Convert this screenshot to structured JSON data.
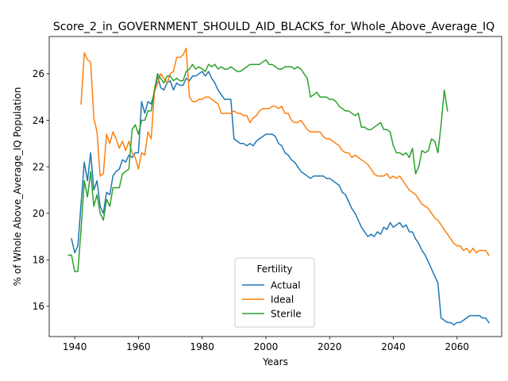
{
  "chart_data": {
    "type": "line",
    "title": "Score_2_in_GOVERNMENT_SHOULD_AID_BLACKS_for_Whole_Above_Average_IQ",
    "xlabel": "Years",
    "ylabel": "% of Whole Above_Average_IQ Population",
    "xlim": [
      1932,
      2074
    ],
    "ylim": [
      14.7,
      27.6
    ],
    "xticks": [
      1940,
      1960,
      1980,
      2000,
      2020,
      2040,
      2060
    ],
    "yticks": [
      16,
      18,
      20,
      22,
      24,
      26
    ],
    "grid": false,
    "legend": {
      "title": "Fertility",
      "placement": "lower center"
    },
    "series": [
      {
        "name": "Actual",
        "color": "#1f77b4",
        "x": [
          1939,
          1940,
          1941,
          1942,
          1943,
          1944,
          1945,
          1946,
          1947,
          1948,
          1949,
          1950,
          1951,
          1952,
          1953,
          1954,
          1955,
          1956,
          1957,
          1958,
          1959,
          1960,
          1961,
          1962,
          1963,
          1964,
          1965,
          1966,
          1967,
          1968,
          1969,
          1970,
          1971,
          1972,
          1973,
          1974,
          1975,
          1976,
          1977,
          1978,
          1979,
          1980,
          1981,
          1982,
          1983,
          1984,
          1985,
          1986,
          1987,
          1988,
          1989,
          1990,
          1991,
          1992,
          1993,
          1994,
          1995,
          1996,
          1997,
          1998,
          1999,
          2000,
          2001,
          2002,
          2003,
          2004,
          2005,
          2006,
          2007,
          2008,
          2009,
          2010,
          2011,
          2012,
          2013,
          2014,
          2015,
          2016,
          2017,
          2018,
          2019,
          2020,
          2021,
          2022,
          2023,
          2024,
          2025,
          2026,
          2027,
          2028,
          2029,
          2030,
          2031,
          2032,
          2033,
          2034,
          2035,
          2036,
          2037,
          2038,
          2039,
          2040,
          2041,
          2042,
          2043,
          2044,
          2045,
          2046,
          2047,
          2048,
          2049,
          2050,
          2051,
          2052,
          2053,
          2054,
          2055,
          2056,
          2057,
          2058,
          2059,
          2060,
          2061,
          2062,
          2063,
          2064,
          2065,
          2066,
          2067,
          2068,
          2069,
          2070
        ],
        "y": [
          18.9,
          18.3,
          18.6,
          20.4,
          22.2,
          21.4,
          22.6,
          21.0,
          21.4,
          20.3,
          20.0,
          20.9,
          20.8,
          21.6,
          21.8,
          21.9,
          22.3,
          22.2,
          22.5,
          22.4,
          22.6,
          22.6,
          24.8,
          24.3,
          24.8,
          24.7,
          25.2,
          25.9,
          25.4,
          25.3,
          25.6,
          25.7,
          25.3,
          25.6,
          25.5,
          25.5,
          25.8,
          25.7,
          25.9,
          25.9,
          26.0,
          26.1,
          25.9,
          26.1,
          25.8,
          25.6,
          25.3,
          25.1,
          24.9,
          24.9,
          24.9,
          23.2,
          23.1,
          23.0,
          23.0,
          22.9,
          23.0,
          22.9,
          23.1,
          23.2,
          23.3,
          23.4,
          23.4,
          23.4,
          23.3,
          23.0,
          22.9,
          22.6,
          22.5,
          22.3,
          22.2,
          22.0,
          21.8,
          21.7,
          21.6,
          21.5,
          21.6,
          21.6,
          21.6,
          21.6,
          21.5,
          21.5,
          21.4,
          21.3,
          21.2,
          20.9,
          20.8,
          20.5,
          20.2,
          20.0,
          19.7,
          19.4,
          19.2,
          19.0,
          19.1,
          19.0,
          19.2,
          19.1,
          19.4,
          19.3,
          19.6,
          19.4,
          19.5,
          19.6,
          19.4,
          19.5,
          19.2,
          19.2,
          18.9,
          18.7,
          18.4,
          18.2,
          17.9,
          17.6,
          17.3,
          17.0,
          15.5,
          15.4,
          15.3,
          15.3,
          15.2,
          15.3,
          15.3,
          15.4,
          15.5,
          15.6,
          15.6,
          15.6,
          15.6,
          15.5,
          15.5,
          15.3
        ]
      },
      {
        "name": "Ideal",
        "color": "#ff7f0e",
        "x": [
          1942,
          1943,
          1944,
          1945,
          1946,
          1947,
          1948,
          1949,
          1950,
          1951,
          1952,
          1953,
          1954,
          1955,
          1956,
          1957,
          1958,
          1959,
          1960,
          1961,
          1962,
          1963,
          1964,
          1965,
          1966,
          1967,
          1968,
          1969,
          1970,
          1971,
          1972,
          1973,
          1974,
          1975,
          1976,
          1977,
          1978,
          1979,
          1980,
          1981,
          1982,
          1983,
          1984,
          1985,
          1986,
          1987,
          1988,
          1989,
          1990,
          1991,
          1992,
          1993,
          1994,
          1995,
          1996,
          1997,
          1998,
          1999,
          2000,
          2001,
          2002,
          2003,
          2004,
          2005,
          2006,
          2007,
          2008,
          2009,
          2010,
          2011,
          2012,
          2013,
          2014,
          2015,
          2016,
          2017,
          2018,
          2019,
          2020,
          2021,
          2022,
          2023,
          2024,
          2025,
          2026,
          2027,
          2028,
          2029,
          2030,
          2031,
          2032,
          2033,
          2034,
          2035,
          2036,
          2037,
          2038,
          2039,
          2040,
          2041,
          2042,
          2043,
          2044,
          2045,
          2046,
          2047,
          2048,
          2049,
          2050,
          2051,
          2052,
          2053,
          2054,
          2055,
          2056,
          2057,
          2058,
          2059,
          2060,
          2061,
          2062,
          2063,
          2064,
          2065,
          2066,
          2067,
          2068,
          2069,
          2070
        ],
        "y": [
          24.7,
          26.9,
          26.6,
          26.5,
          24.1,
          23.5,
          21.6,
          21.7,
          23.4,
          23.0,
          23.5,
          23.2,
          22.8,
          23.1,
          22.7,
          23.1,
          22.6,
          22.4,
          21.9,
          22.6,
          22.5,
          23.5,
          23.2,
          25.2,
          25.6,
          26.0,
          25.8,
          25.6,
          26.0,
          26.1,
          26.7,
          26.7,
          26.8,
          27.1,
          25.0,
          24.8,
          24.8,
          24.9,
          24.9,
          25.0,
          25.0,
          24.9,
          24.8,
          24.7,
          24.3,
          24.3,
          24.3,
          24.3,
          24.4,
          24.3,
          24.3,
          24.2,
          24.2,
          23.9,
          24.1,
          24.2,
          24.4,
          24.5,
          24.5,
          24.5,
          24.6,
          24.6,
          24.5,
          24.6,
          24.3,
          24.3,
          24.0,
          23.9,
          23.9,
          24.0,
          23.8,
          23.6,
          23.5,
          23.5,
          23.5,
          23.5,
          23.3,
          23.2,
          23.2,
          23.1,
          23.0,
          22.9,
          22.7,
          22.6,
          22.6,
          22.4,
          22.5,
          22.4,
          22.3,
          22.2,
          22.1,
          21.9,
          21.7,
          21.6,
          21.6,
          21.6,
          21.7,
          21.5,
          21.6,
          21.5,
          21.6,
          21.4,
          21.2,
          21.0,
          20.9,
          20.8,
          20.6,
          20.4,
          20.3,
          20.2,
          20.0,
          19.8,
          19.7,
          19.5,
          19.3,
          19.1,
          18.9,
          18.7,
          18.6,
          18.6,
          18.4,
          18.5,
          18.3,
          18.5,
          18.3,
          18.4,
          18.4,
          18.4,
          18.2
        ]
      },
      {
        "name": "Sterile",
        "color": "#2ca02c",
        "x": [
          1938,
          1939,
          1940,
          1941,
          1942,
          1943,
          1944,
          1945,
          1946,
          1947,
          1948,
          1949,
          1950,
          1951,
          1952,
          1953,
          1954,
          1955,
          1956,
          1957,
          1958,
          1959,
          1960,
          1961,
          1962,
          1963,
          1964,
          1965,
          1966,
          1967,
          1968,
          1969,
          1970,
          1971,
          1972,
          1973,
          1974,
          1975,
          1976,
          1977,
          1978,
          1979,
          1980,
          1981,
          1982,
          1983,
          1984,
          1985,
          1986,
          1987,
          1988,
          1989,
          1990,
          1991,
          1992,
          1993,
          1994,
          1995,
          1996,
          1997,
          1998,
          1999,
          2000,
          2001,
          2002,
          2003,
          2004,
          2005,
          2006,
          2007,
          2008,
          2009,
          2010,
          2011,
          2012,
          2013,
          2014,
          2015,
          2016,
          2017,
          2018,
          2019,
          2020,
          2021,
          2022,
          2023,
          2024,
          2025,
          2026,
          2027,
          2028,
          2029,
          2030,
          2031,
          2032,
          2033,
          2034,
          2035,
          2036,
          2037,
          2038,
          2039,
          2040,
          2041,
          2042,
          2043,
          2044,
          2045,
          2046,
          2047,
          2048,
          2049,
          2050,
          2051,
          2052,
          2053,
          2054,
          2055,
          2056,
          2057
        ],
        "y": [
          18.2,
          18.2,
          17.5,
          17.5,
          19.3,
          21.4,
          20.7,
          21.8,
          20.3,
          20.8,
          20.0,
          19.7,
          20.6,
          20.3,
          21.1,
          21.1,
          21.1,
          21.7,
          21.8,
          21.9,
          23.6,
          23.8,
          23.4,
          24.0,
          24.0,
          24.4,
          24.4,
          25.3,
          26.0,
          25.8,
          25.6,
          25.9,
          25.9,
          25.7,
          25.8,
          25.7,
          25.7,
          26.1,
          26.2,
          26.4,
          26.2,
          26.3,
          26.2,
          26.1,
          26.4,
          26.3,
          26.4,
          26.2,
          26.3,
          26.2,
          26.2,
          26.3,
          26.2,
          26.1,
          26.1,
          26.2,
          26.3,
          26.4,
          26.4,
          26.4,
          26.4,
          26.5,
          26.6,
          26.4,
          26.4,
          26.3,
          26.2,
          26.2,
          26.3,
          26.3,
          26.3,
          26.2,
          26.3,
          26.2,
          26.0,
          25.8,
          25.0,
          25.1,
          25.2,
          25.0,
          25.0,
          25.0,
          24.9,
          24.9,
          24.8,
          24.6,
          24.5,
          24.4,
          24.4,
          24.3,
          24.2,
          24.3,
          23.7,
          23.7,
          23.6,
          23.6,
          23.7,
          23.8,
          23.9,
          23.6,
          23.6,
          23.5,
          22.9,
          22.6,
          22.6,
          22.5,
          22.6,
          22.4,
          22.8,
          21.7,
          22.0,
          22.7,
          22.6,
          22.7,
          23.2,
          23.1,
          22.6,
          23.8,
          25.3,
          24.4
        ]
      }
    ]
  }
}
